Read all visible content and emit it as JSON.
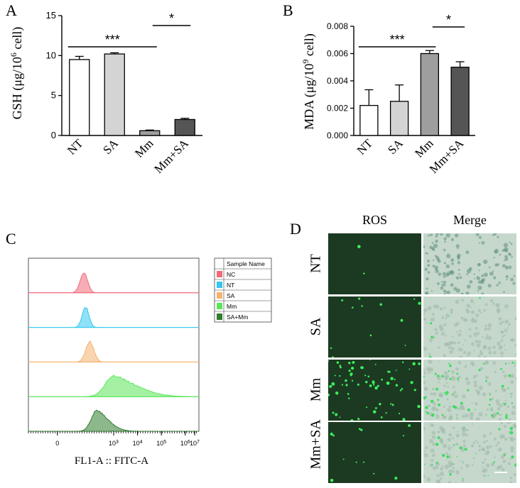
{
  "panels": {
    "A": "A",
    "B": "B",
    "C": "C",
    "D": "D"
  },
  "chart_data": [
    {
      "panel": "A",
      "type": "bar",
      "categories": [
        "NT",
        "SA",
        "Mm",
        "Mm+SA"
      ],
      "values": [
        9.5,
        10.2,
        0.6,
        2.0
      ],
      "errors": [
        0.4,
        0.15,
        0.08,
        0.15
      ],
      "bar_colors": [
        "#ffffff",
        "#d4d4d4",
        "#9e9e9e",
        "#555555"
      ],
      "ylabel_prefix": "GSH (μg/10",
      "ylabel_sup": "6",
      "ylabel_suffix": " cell)",
      "ylim": [
        0,
        15
      ],
      "yticks": [
        0,
        5,
        10,
        15
      ],
      "ytick_labels": [
        "0",
        "5",
        "10",
        "15"
      ],
      "significance": [
        {
          "from": 0,
          "to": 2,
          "label": "***"
        },
        {
          "from": 2,
          "to": 3,
          "label": "*"
        }
      ]
    },
    {
      "panel": "B",
      "type": "bar",
      "categories": [
        "NT",
        "SA",
        "Mm",
        "Mm+SA"
      ],
      "values": [
        0.0022,
        0.0025,
        0.006,
        0.005
      ],
      "errors": [
        0.00115,
        0.0012,
        0.00022,
        0.0004
      ],
      "bar_colors": [
        "#ffffff",
        "#d4d4d4",
        "#9e9e9e",
        "#555555"
      ],
      "ylabel_prefix": "MDA (μg/10",
      "ylabel_sup": "9",
      "ylabel_suffix": " cell)",
      "ylim": [
        0,
        0.008
      ],
      "yticks": [
        0,
        0.002,
        0.004,
        0.006,
        0.008
      ],
      "ytick_labels": [
        "0.000",
        "0.002",
        "0.004",
        "0.006",
        "0.008"
      ],
      "significance": [
        {
          "from": 0,
          "to": 2,
          "label": "***"
        },
        {
          "from": 2,
          "to": 3,
          "label": "*"
        }
      ]
    },
    {
      "panel": "C",
      "type": "area",
      "xlabel": "FL1-A :: FITC-A",
      "x_scale": "logicle",
      "x_tick_labels": [
        {
          "base": "0",
          "exp": ""
        },
        {
          "base": "10",
          "exp": "3"
        },
        {
          "base": "10",
          "exp": "4"
        },
        {
          "base": "10",
          "exp": "5"
        },
        {
          "base": "10",
          "exp": "6"
        },
        {
          "base": "10",
          "exp": "7"
        }
      ],
      "legend_header": "Sample Name",
      "legend_position": "right",
      "series": [
        {
          "name": "NC",
          "color": "#f0697a",
          "peak": 0.325,
          "width": 0.022,
          "tail": 0.0
        },
        {
          "name": "NT",
          "color": "#33c8f0",
          "peak": 0.335,
          "width": 0.02,
          "tail": 0.0
        },
        {
          "name": "SA",
          "color": "#f4b26e",
          "peak": 0.36,
          "width": 0.024,
          "tail": 0.0
        },
        {
          "name": "Mm",
          "color": "#59e659",
          "peak": 0.5,
          "width": 0.05,
          "tail": 0.09
        },
        {
          "name": "SA+Mm",
          "color": "#2e7d2e",
          "peak": 0.4,
          "width": 0.032,
          "tail": 0.04
        }
      ]
    }
  ],
  "panel_d": {
    "columns": [
      "ROS",
      "Merge"
    ],
    "rows": [
      "NT",
      "SA",
      "Mm",
      "Mm+SA"
    ],
    "ros_dot_counts": [
      2,
      12,
      70,
      12
    ],
    "merge_dot_counts": [
      0,
      5,
      55,
      25
    ],
    "ros_background": "#1c3a22",
    "merge_background": "#c6d8cc"
  }
}
